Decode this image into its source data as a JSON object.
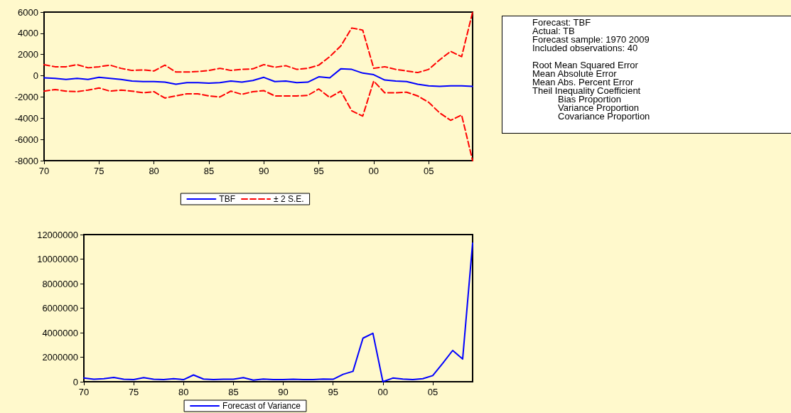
{
  "chart_data": [
    {
      "type": "line",
      "x": [
        1970,
        1971,
        1972,
        1973,
        1974,
        1975,
        1976,
        1977,
        1978,
        1979,
        1980,
        1981,
        1982,
        1983,
        1984,
        1985,
        1986,
        1987,
        1988,
        1989,
        1990,
        1991,
        1992,
        1993,
        1994,
        1995,
        1996,
        1997,
        1998,
        1999,
        2000,
        2001,
        2002,
        2003,
        2004,
        2005,
        2006,
        2007,
        2008,
        2009
      ],
      "series": [
        {
          "name": "TBF",
          "color": "#0000ff",
          "line_style": "solid",
          "values": [
            -200,
            -250,
            -350,
            -250,
            -350,
            -150,
            -250,
            -350,
            -500,
            -550,
            -550,
            -600,
            -800,
            -650,
            -650,
            -700,
            -650,
            -500,
            -600,
            -450,
            -150,
            -550,
            -500,
            -650,
            -600,
            -100,
            -200,
            650,
            600,
            250,
            100,
            -400,
            -500,
            -550,
            -800,
            -950,
            -1000,
            -950,
            -950,
            -1000
          ]
        },
        {
          "name": "± 2 S.E.",
          "color": "#ff0000",
          "line_style": "dashed",
          "values": [
            1050,
            850,
            850,
            1050,
            750,
            850,
            1000,
            700,
            500,
            550,
            450,
            1000,
            350,
            350,
            400,
            500,
            700,
            500,
            600,
            650,
            1050,
            800,
            950,
            600,
            700,
            1000,
            1800,
            2800,
            4500,
            4300,
            700,
            850,
            600,
            450,
            300,
            600,
            1500,
            2300,
            1800,
            6000
          ]
        },
        {
          "color": "#ff0000",
          "line_style": "dashed",
          "values": [
            -1450,
            -1300,
            -1450,
            -1500,
            -1350,
            -1150,
            -1450,
            -1350,
            -1450,
            -1600,
            -1500,
            -2100,
            -1900,
            -1700,
            -1700,
            -1900,
            -2000,
            -1450,
            -1750,
            -1500,
            -1400,
            -1900,
            -1900,
            -1900,
            -1850,
            -1250,
            -2050,
            -1450,
            -3300,
            -3800,
            -500,
            -1600,
            -1600,
            -1550,
            -1900,
            -2500,
            -3500,
            -4200,
            -3700,
            -8000
          ]
        }
      ],
      "xlim": [
        1970,
        2009
      ],
      "xticks": [
        {
          "value": 1970,
          "label": "70"
        },
        {
          "value": 1975,
          "label": "75"
        },
        {
          "value": 1980,
          "label": "80"
        },
        {
          "value": 1985,
          "label": "85"
        },
        {
          "value": 1990,
          "label": "90"
        },
        {
          "value": 1995,
          "label": "95"
        },
        {
          "value": 2000,
          "label": "00"
        },
        {
          "value": 2005,
          "label": "05"
        }
      ],
      "ylim": [
        -8000,
        6000
      ],
      "yticks": [
        -8000,
        -6000,
        -4000,
        -2000,
        0,
        2000,
        4000,
        6000
      ],
      "grid": false,
      "legend": "bottom",
      "marker": "none"
    },
    {
      "type": "line",
      "x": [
        1970,
        1971,
        1972,
        1973,
        1974,
        1975,
        1976,
        1977,
        1978,
        1979,
        1980,
        1981,
        1982,
        1983,
        1984,
        1985,
        1986,
        1987,
        1988,
        1989,
        1990,
        1991,
        1992,
        1993,
        1994,
        1995,
        1996,
        1997,
        1998,
        1999,
        2000,
        2001,
        2002,
        2003,
        2004,
        2005,
        2006,
        2007,
        2008,
        2009
      ],
      "series": [
        {
          "name": "Forecast of Variance",
          "color": "#0000ff",
          "line_style": "solid",
          "values": [
            300000,
            200000,
            250000,
            350000,
            200000,
            170000,
            330000,
            200000,
            180000,
            250000,
            170000,
            550000,
            220000,
            170000,
            200000,
            200000,
            330000,
            130000,
            220000,
            170000,
            180000,
            200000,
            180000,
            180000,
            220000,
            200000,
            600000,
            850000,
            3550000,
            3950000,
            0,
            300000,
            220000,
            170000,
            250000,
            500000,
            1500000,
            2550000,
            1850000,
            11300000
          ]
        }
      ],
      "xlim": [
        1970,
        2009
      ],
      "xticks": [
        {
          "value": 1970,
          "label": "70"
        },
        {
          "value": 1975,
          "label": "75"
        },
        {
          "value": 1980,
          "label": "80"
        },
        {
          "value": 1985,
          "label": "85"
        },
        {
          "value": 1990,
          "label": "90"
        },
        {
          "value": 1995,
          "label": "95"
        },
        {
          "value": 2000,
          "label": "00"
        },
        {
          "value": 2005,
          "label": "05"
        }
      ],
      "ylim": [
        0,
        12000000
      ],
      "yticks": [
        0,
        2000000,
        4000000,
        6000000,
        8000000,
        10000000,
        12000000
      ],
      "grid": false,
      "legend": "bottom",
      "marker": "none"
    },
    {
      "type": "other",
      "annotations": [
        "Forecast: TBF",
        "Actual: TB",
        "Forecast sample: 1970 2009",
        "Included observations: 40",
        "Root Mean Squared Error",
        "Mean Absolute Error",
        "Mean Abs. Percent Error",
        "Theil Inequality Coefficient",
        "Bias Proportion",
        "Variance Proportion",
        "Covariance Proportion"
      ]
    }
  ]
}
